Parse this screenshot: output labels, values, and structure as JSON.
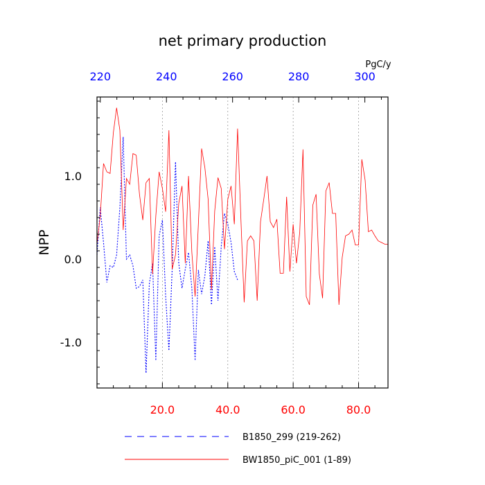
{
  "chart_data": {
    "type": "line",
    "title": "net primary production",
    "ylabel": "NPP",
    "units_label": "PgC/y",
    "bottom_axis": {
      "xlim": [
        0,
        89
      ],
      "ticks": [
        20,
        40,
        60,
        80
      ],
      "tick_labels": [
        "20.0",
        "40.0",
        "60.0",
        "80.0"
      ],
      "color": "#ff0000"
    },
    "top_axis": {
      "xlim": [
        219,
        307
      ],
      "ticks": [
        220,
        240,
        260,
        280,
        300
      ],
      "tick_labels": [
        "220",
        "240",
        "260",
        "280",
        "300"
      ],
      "color": "#0000ff"
    },
    "ylim": [
      -1.55,
      1.95
    ],
    "y_ticks": [
      -1.0,
      0.0,
      1.0
    ],
    "y_tick_labels": [
      "-1.0",
      "0.0",
      "1.0"
    ],
    "grid": "vertical dotted at bottom-axis ticks",
    "series": [
      {
        "name": "B1850_299 (219-262)",
        "color": "#0000ff",
        "style": "dashed",
        "x": [
          0,
          1,
          2,
          3,
          4,
          5,
          6,
          7,
          8,
          9,
          10,
          11,
          12,
          13,
          14,
          15,
          16,
          17,
          18,
          19,
          20,
          21,
          22,
          23,
          24,
          25,
          26,
          27,
          28,
          29,
          30,
          31,
          32,
          33,
          34,
          35,
          36,
          37,
          38,
          39,
          40,
          41,
          42,
          43
        ],
        "values": [
          0.05,
          0.62,
          0.2,
          -0.28,
          -0.08,
          -0.1,
          0.05,
          0.62,
          1.47,
          0.0,
          0.05,
          -0.08,
          -0.35,
          -0.33,
          -0.25,
          -1.37,
          -0.3,
          -0.05,
          -1.22,
          0.28,
          0.47,
          -0.45,
          -1.1,
          -0.12,
          1.17,
          -0.05,
          -0.35,
          -0.12,
          0.08,
          -0.35,
          -1.22,
          -0.13,
          -0.42,
          -0.2,
          0.22,
          -0.55,
          0.15,
          -0.5,
          0.15,
          0.55,
          0.42,
          0.2,
          -0.15,
          -0.25
        ]
      },
      {
        "name": "BW1850_piC_001 (1-89)",
        "color": "#ff0000",
        "style": "solid",
        "x": [
          0,
          1,
          2,
          3,
          4,
          5,
          6,
          7,
          8,
          9,
          10,
          11,
          12,
          13,
          14,
          15,
          16,
          17,
          18,
          19,
          20,
          21,
          22,
          23,
          24,
          25,
          26,
          27,
          28,
          29,
          30,
          31,
          32,
          33,
          34,
          35,
          36,
          37,
          38,
          39,
          40,
          41,
          42,
          43,
          44,
          45,
          46,
          47,
          48,
          49,
          50,
          51,
          52,
          53,
          54,
          55,
          56,
          57,
          58,
          59,
          60,
          61,
          62,
          63,
          64,
          65,
          66,
          67,
          68,
          69,
          70,
          71,
          72,
          73,
          74,
          75,
          76,
          77,
          78,
          79,
          80,
          81,
          82,
          83,
          84,
          85,
          86,
          87,
          88,
          89
        ],
        "values": [
          0.18,
          0.52,
          1.15,
          1.05,
          1.03,
          1.52,
          1.82,
          1.55,
          0.35,
          0.97,
          0.9,
          1.27,
          1.25,
          0.78,
          0.47,
          0.92,
          0.97,
          -0.18,
          0.52,
          1.05,
          0.85,
          0.57,
          1.55,
          -0.12,
          0.05,
          0.67,
          0.88,
          -0.05,
          1.0,
          0.08,
          -0.45,
          0.42,
          1.33,
          1.1,
          0.72,
          -0.37,
          0.58,
          0.98,
          0.85,
          0.12,
          0.72,
          0.88,
          0.42,
          1.57,
          0.5,
          -0.52,
          0.22,
          0.28,
          0.22,
          -0.5,
          0.45,
          0.72,
          1.0,
          0.45,
          0.38,
          0.48,
          -0.17,
          -0.17,
          0.75,
          -0.15,
          0.42,
          -0.05,
          0.32,
          1.32,
          -0.45,
          -0.55,
          0.65,
          0.78,
          -0.18,
          -0.47,
          0.82,
          0.92,
          0.55,
          0.55,
          -0.55,
          0.02,
          0.28,
          0.3,
          0.35,
          0.17,
          0.17,
          1.2,
          0.95,
          0.33,
          0.35,
          0.28,
          0.22,
          0.2,
          0.18,
          0.18
        ]
      }
    ]
  }
}
